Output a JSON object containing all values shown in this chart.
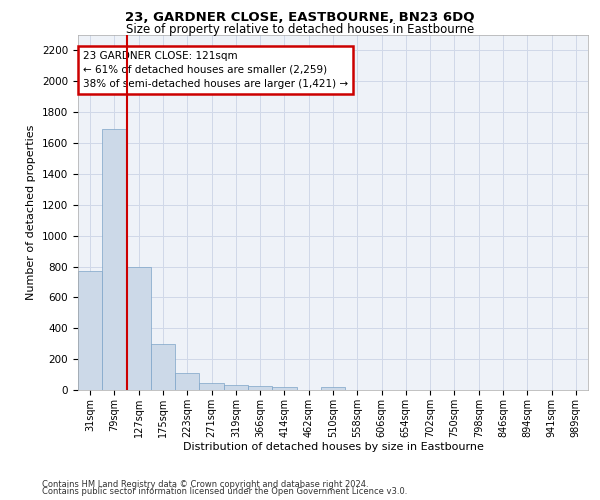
{
  "title": "23, GARDNER CLOSE, EASTBOURNE, BN23 6DQ",
  "subtitle": "Size of property relative to detached houses in Eastbourne",
  "xlabel": "Distribution of detached houses by size in Eastbourne",
  "ylabel": "Number of detached properties",
  "categories": [
    "31sqm",
    "79sqm",
    "127sqm",
    "175sqm",
    "223sqm",
    "271sqm",
    "319sqm",
    "366sqm",
    "414sqm",
    "462sqm",
    "510sqm",
    "558sqm",
    "606sqm",
    "654sqm",
    "702sqm",
    "750sqm",
    "798sqm",
    "846sqm",
    "894sqm",
    "941sqm",
    "989sqm"
  ],
  "values": [
    770,
    1690,
    800,
    300,
    110,
    45,
    30,
    25,
    20,
    0,
    20,
    0,
    0,
    0,
    0,
    0,
    0,
    0,
    0,
    0,
    0
  ],
  "bar_color": "#ccd9e8",
  "bar_edge_color": "#7ca3c8",
  "grid_color": "#d0d8e8",
  "bg_color": "#eef2f8",
  "annotation_box_text": "23 GARDNER CLOSE: 121sqm\n← 61% of detached houses are smaller (2,259)\n38% of semi-detached houses are larger (1,421) →",
  "annotation_box_edge_color": "#cc0000",
  "vline_x_index": 2,
  "vline_color": "#cc0000",
  "ylim": [
    0,
    2300
  ],
  "yticks": [
    0,
    200,
    400,
    600,
    800,
    1000,
    1200,
    1400,
    1600,
    1800,
    2000,
    2200
  ],
  "footer_line1": "Contains HM Land Registry data © Crown copyright and database right 2024.",
  "footer_line2": "Contains public sector information licensed under the Open Government Licence v3.0."
}
